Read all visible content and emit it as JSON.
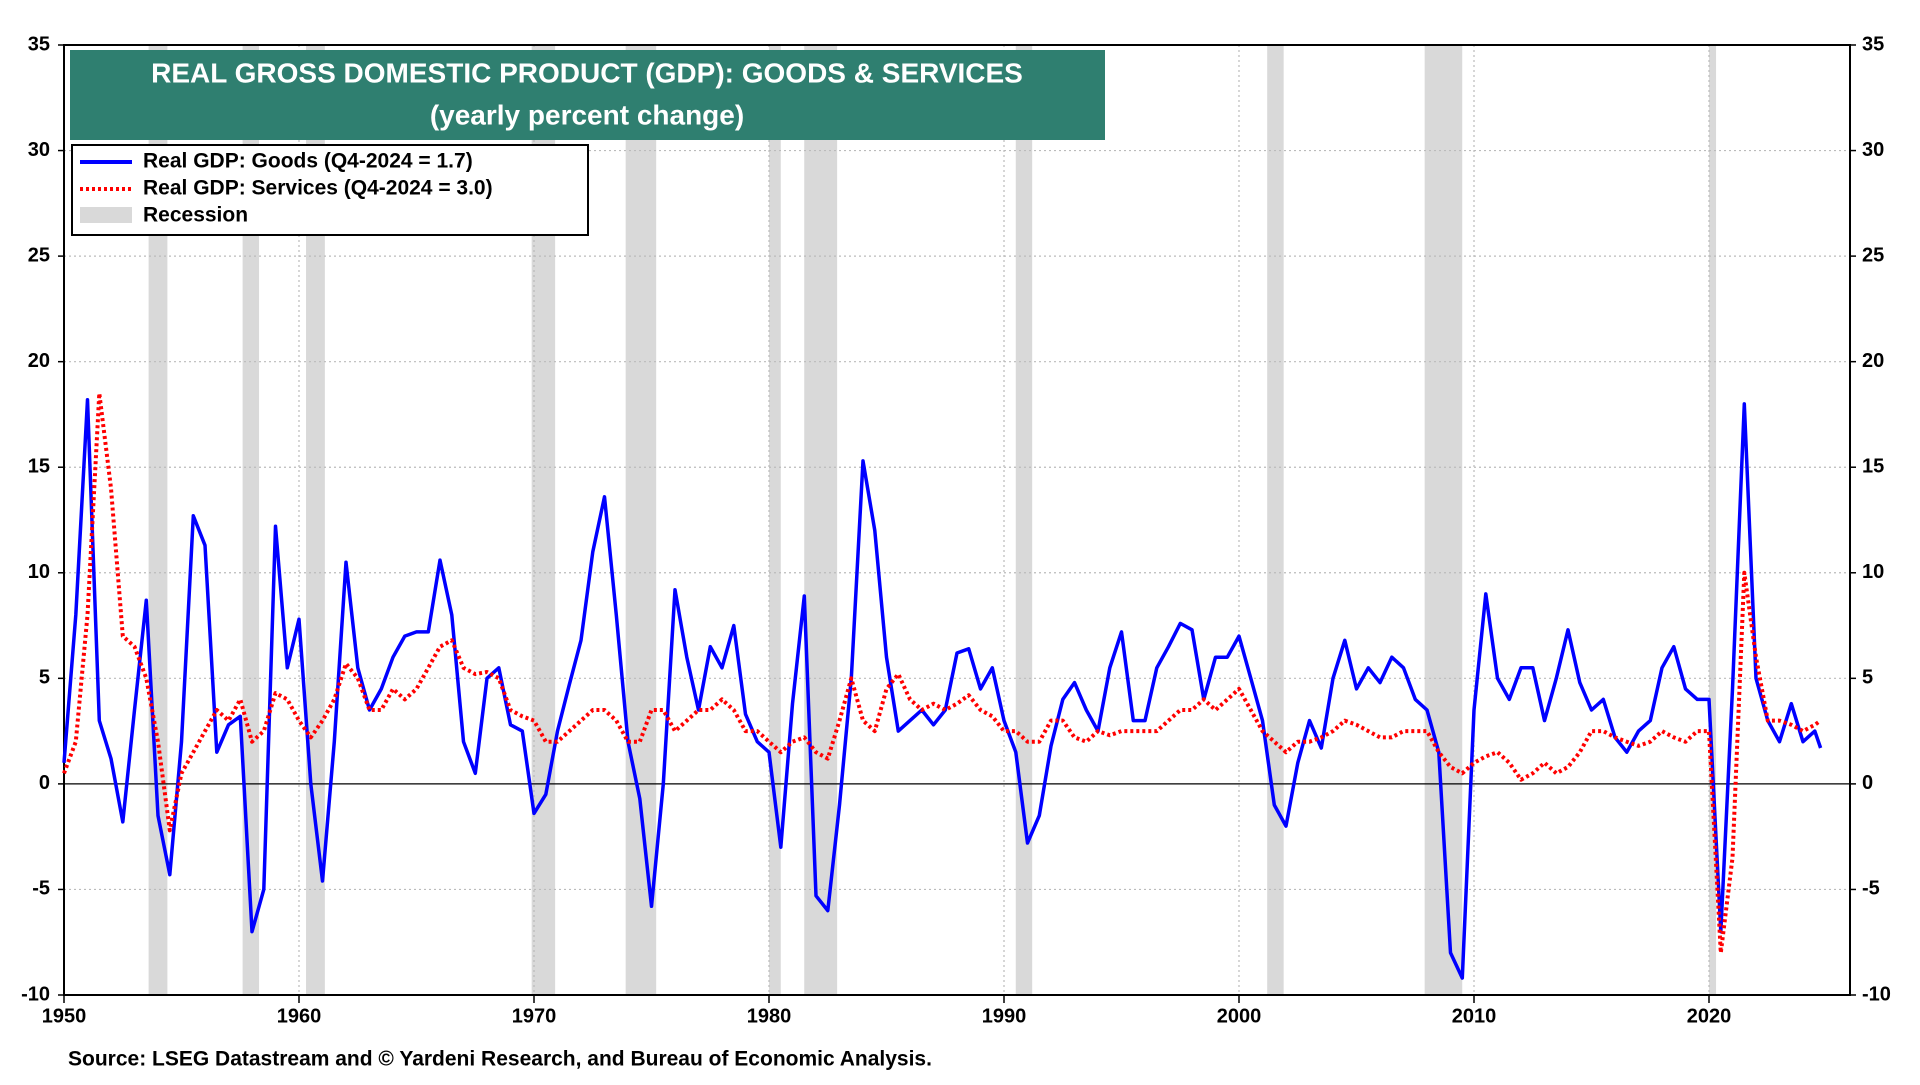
{
  "chart_data": {
    "type": "line",
    "title": "REAL GROSS DOMESTIC PRODUCT (GDP): GOODS & SERVICES",
    "subtitle": "(yearly percent change)",
    "source": "Source: LSEG Datastream and © Yardeni Research, and Bureau of Economic Analysis.",
    "xlim": [
      1950,
      2026
    ],
    "xticks": [
      1950,
      1960,
      1970,
      1980,
      1990,
      2000,
      2010,
      2020
    ],
    "ylim": [
      -10,
      35
    ],
    "yticks": [
      -10,
      -5,
      0,
      5,
      10,
      15,
      20,
      25,
      30,
      35
    ],
    "grid": true,
    "legend": "upper left",
    "recession_label": "Recession",
    "recession_color": "#d9d9d9",
    "recessions": [
      [
        1953.6,
        1954.4
      ],
      [
        1957.6,
        1958.3
      ],
      [
        1960.3,
        1961.1
      ],
      [
        1969.9,
        1970.9
      ],
      [
        1973.9,
        1975.2
      ],
      [
        1980.0,
        1980.5
      ],
      [
        1981.5,
        1982.9
      ],
      [
        1990.5,
        1991.2
      ],
      [
        2001.2,
        2001.9
      ],
      [
        2007.9,
        2009.5
      ],
      [
        2020.0,
        2020.3
      ]
    ],
    "x": [
      1950,
      1950.5,
      1951,
      1951.5,
      1952,
      1952.5,
      1953,
      1953.5,
      1954,
      1954.5,
      1955,
      1955.5,
      1956,
      1956.5,
      1957,
      1957.5,
      1958,
      1958.5,
      1959,
      1959.5,
      1960,
      1960.5,
      1961,
      1961.5,
      1962,
      1962.5,
      1963,
      1963.5,
      1964,
      1964.5,
      1965,
      1965.5,
      1966,
      1966.5,
      1967,
      1967.5,
      1968,
      1968.5,
      1969,
      1969.5,
      1970,
      1970.5,
      1971,
      1971.5,
      1972,
      1972.5,
      1973,
      1973.5,
      1974,
      1974.5,
      1975,
      1975.5,
      1976,
      1976.5,
      1977,
      1977.5,
      1978,
      1978.5,
      1979,
      1979.5,
      1980,
      1980.5,
      1981,
      1981.5,
      1982,
      1982.5,
      1983,
      1983.5,
      1984,
      1984.5,
      1985,
      1985.5,
      1986,
      1986.5,
      1987,
      1987.5,
      1988,
      1988.5,
      1989,
      1989.5,
      1990,
      1990.5,
      1991,
      1991.5,
      1992,
      1992.5,
      1993,
      1993.5,
      1994,
      1994.5,
      1995,
      1995.5,
      1996,
      1996.5,
      1997,
      1997.5,
      1998,
      1998.5,
      1999,
      1999.5,
      2000,
      2000.5,
      2001,
      2001.5,
      2002,
      2002.5,
      2003,
      2003.5,
      2004,
      2004.5,
      2005,
      2005.5,
      2006,
      2006.5,
      2007,
      2007.5,
      2008,
      2008.5,
      2009,
      2009.5,
      2010,
      2010.5,
      2011,
      2011.5,
      2012,
      2012.5,
      2013,
      2013.5,
      2014,
      2014.5,
      2015,
      2015.5,
      2016,
      2016.5,
      2017,
      2017.5,
      2018,
      2018.5,
      2019,
      2019.5,
      2020,
      2020.5,
      2021,
      2021.5,
      2022,
      2022.5,
      2023,
      2023.5,
      2024,
      2024.5,
      2024.75
    ],
    "series": [
      {
        "name": "Real GDP: Goods  (Q4-2024 = 1.7)",
        "color": "#0000ff",
        "style": "solid",
        "values": [
          1,
          8,
          18.2,
          3,
          1.2,
          -1.8,
          3.5,
          8.7,
          -1.5,
          -4.3,
          2,
          12.7,
          11.3,
          1.5,
          2.8,
          3.2,
          -7,
          -5,
          12.2,
          5.5,
          7.8,
          0,
          -4.6,
          2,
          10.5,
          5.5,
          3.5,
          4.5,
          6,
          7,
          7.2,
          7.2,
          10.6,
          8,
          2,
          0.5,
          5,
          5.5,
          2.8,
          2.5,
          -1.4,
          -0.5,
          2.5,
          4.7,
          6.8,
          11,
          13.6,
          8,
          2,
          -0.7,
          -5.8,
          0,
          9.2,
          6,
          3.5,
          6.5,
          5.5,
          7.5,
          3.3,
          2,
          1.5,
          -3,
          3.8,
          8.9,
          -5.3,
          -6,
          -1,
          5,
          15.3,
          12,
          6,
          2.5,
          3,
          3.5,
          2.8,
          3.5,
          6.2,
          6.4,
          4.5,
          5.5,
          3,
          1.5,
          -2.8,
          -1.5,
          1.8,
          4,
          4.8,
          3.5,
          2.5,
          5.5,
          7.2,
          3,
          3,
          5.5,
          6.5,
          7.6,
          7.3,
          4,
          6,
          6,
          7,
          5,
          3,
          -1,
          -2,
          1,
          3,
          1.7,
          5,
          6.8,
          4.5,
          5.5,
          4.8,
          6,
          5.5,
          4,
          3.5,
          1.5,
          -8,
          -9.2,
          3.5,
          9,
          5,
          4,
          5.5,
          5.5,
          3,
          5,
          7.3,
          4.8,
          3.5,
          4,
          2.2,
          1.5,
          2.5,
          3,
          5.5,
          6.5,
          4.5,
          4,
          4,
          -7,
          4.5,
          18,
          5,
          3,
          2,
          3.8,
          2,
          2.5,
          1.7
        ]
      },
      {
        "name": "Real GDP: Services (Q4-2024 = 3.0)",
        "color": "#ff0000",
        "style": "dotted",
        "values": [
          0.5,
          2,
          8,
          18.5,
          14,
          7,
          6.5,
          5,
          2,
          -2.2,
          0.5,
          1.5,
          2.5,
          3.5,
          3,
          4,
          2,
          2.5,
          4.3,
          4,
          3,
          2.2,
          3,
          4,
          5.7,
          5,
          3.5,
          3.5,
          4.5,
          4,
          4.5,
          5.5,
          6.5,
          6.8,
          5.5,
          5.2,
          5.3,
          5,
          3.5,
          3.2,
          3,
          2,
          2,
          2.5,
          3,
          3.5,
          3.5,
          3,
          2,
          2,
          3.5,
          3.5,
          2.5,
          3,
          3.5,
          3.5,
          4,
          3.5,
          2.5,
          2.5,
          2,
          1.5,
          2,
          2.2,
          1.5,
          1.2,
          3,
          5,
          3,
          2.5,
          4.5,
          5.2,
          4,
          3.5,
          3.8,
          3.5,
          3.8,
          4.2,
          3.5,
          3.2,
          2.5,
          2.5,
          2,
          2,
          3,
          3,
          2.2,
          2,
          2.5,
          2.3,
          2.5,
          2.5,
          2.5,
          2.5,
          3,
          3.5,
          3.5,
          4,
          3.5,
          4,
          4.5,
          3.5,
          2.5,
          2,
          1.5,
          2,
          2,
          2.2,
          2.5,
          3,
          2.8,
          2.5,
          2.2,
          2.2,
          2.5,
          2.5,
          2.5,
          1.5,
          0.8,
          0.5,
          1,
          1.3,
          1.5,
          1,
          0.2,
          0.5,
          1,
          0.5,
          0.8,
          1.5,
          2.5,
          2.5,
          2.2,
          2,
          1.8,
          2,
          2.5,
          2.2,
          2,
          2.5,
          2.5,
          -8,
          -3.5,
          10,
          6,
          3,
          3,
          2.8,
          2.5,
          2.8,
          3.0
        ]
      }
    ]
  }
}
